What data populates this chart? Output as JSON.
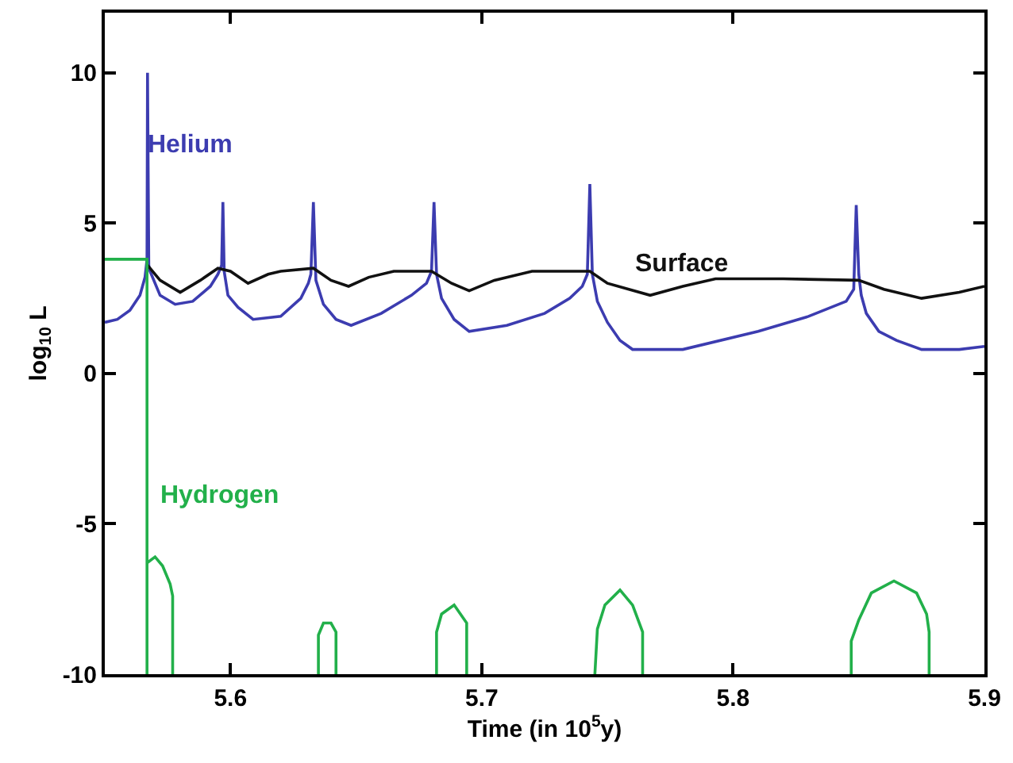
{
  "chart_data": {
    "type": "line",
    "xlabel": "Time (in 10$^{5}$y)",
    "ylabel": "log$_{10}$ L",
    "xlim": [
      5.55,
      5.9
    ],
    "ylim": [
      -10,
      12
    ],
    "xticks": [
      5.6,
      5.7,
      5.8,
      5.9
    ],
    "yticks": [
      -10,
      -5,
      0,
      5,
      10
    ],
    "grid": false,
    "legend": false,
    "marker": "none",
    "line_style": "solid",
    "series": [
      {
        "name": "Helium",
        "color": "#3c3cb0",
        "x": [
          5.55,
          5.555,
          5.56,
          5.564,
          5.566,
          5.5668,
          5.567,
          5.5675,
          5.568,
          5.572,
          5.578,
          5.585,
          5.592,
          5.595,
          5.5965,
          5.597,
          5.5975,
          5.599,
          5.603,
          5.609,
          5.62,
          5.628,
          5.631,
          5.632,
          5.633,
          5.634,
          5.637,
          5.642,
          5.648,
          5.66,
          5.672,
          5.678,
          5.68,
          5.681,
          5.682,
          5.684,
          5.689,
          5.695,
          5.71,
          5.725,
          5.735,
          5.74,
          5.742,
          5.743,
          5.744,
          5.746,
          5.75,
          5.755,
          5.76,
          5.78,
          5.81,
          5.83,
          5.845,
          5.848,
          5.849,
          5.85,
          5.851,
          5.853,
          5.858,
          5.865,
          5.875,
          5.89,
          5.9
        ],
        "values": [
          1.7,
          1.8,
          2.1,
          2.6,
          3.2,
          3.8,
          10,
          3.6,
          3.4,
          2.6,
          2.3,
          2.4,
          2.9,
          3.3,
          3.6,
          5.7,
          3.4,
          2.6,
          2.2,
          1.8,
          1.9,
          2.5,
          3.0,
          3.3,
          5.7,
          3.1,
          2.3,
          1.8,
          1.6,
          2.0,
          2.6,
          3.0,
          3.4,
          5.7,
          3.3,
          2.5,
          1.8,
          1.4,
          1.6,
          2.0,
          2.5,
          2.9,
          3.3,
          6.3,
          3.3,
          2.4,
          1.7,
          1.1,
          0.8,
          0.8,
          1.4,
          1.9,
          2.4,
          2.8,
          5.6,
          3.3,
          2.6,
          2.0,
          1.4,
          1.1,
          0.8,
          0.8,
          0.9
        ]
      },
      {
        "name": "Surface",
        "color": "#111111",
        "x": [
          5.567,
          5.572,
          5.58,
          5.588,
          5.595,
          5.6,
          5.607,
          5.615,
          5.62,
          5.633,
          5.64,
          5.647,
          5.655,
          5.665,
          5.68,
          5.688,
          5.695,
          5.705,
          5.72,
          5.743,
          5.75,
          5.767,
          5.78,
          5.793,
          5.82,
          5.85,
          5.86,
          5.875,
          5.89,
          5.9
        ],
        "values": [
          3.6,
          3.1,
          2.7,
          3.1,
          3.5,
          3.4,
          3.0,
          3.3,
          3.4,
          3.5,
          3.1,
          2.9,
          3.2,
          3.4,
          3.4,
          3.0,
          2.75,
          3.1,
          3.4,
          3.4,
          3.0,
          2.6,
          2.9,
          3.15,
          3.15,
          3.1,
          2.8,
          2.5,
          2.7,
          2.9
        ]
      },
      {
        "name": "Hydrogen",
        "color": "#22b04a",
        "x": [
          5.55,
          5.5668,
          5.5668,
          null,
          5.5668,
          5.57,
          5.573,
          5.576,
          5.577,
          5.577,
          null,
          5.635,
          5.635,
          5.637,
          5.64,
          5.642,
          5.642,
          null,
          5.682,
          5.682,
          5.684,
          5.689,
          5.694,
          5.694,
          null,
          5.745,
          5.746,
          5.749,
          5.755,
          5.76,
          5.764,
          5.764,
          null,
          5.847,
          5.847,
          5.85,
          5.855,
          5.864,
          5.873,
          5.877,
          5.878,
          5.878
        ],
        "values": [
          3.8,
          3.8,
          -10,
          null,
          -6.3,
          -6.1,
          -6.4,
          -7.0,
          -7.4,
          -10,
          null,
          -10,
          -8.7,
          -8.3,
          -8.3,
          -8.6,
          -10,
          null,
          -10,
          -8.6,
          -8.0,
          -7.7,
          -8.3,
          -10,
          null,
          -10,
          -8.5,
          -7.7,
          -7.2,
          -7.7,
          -8.6,
          -10,
          null,
          -10,
          -8.9,
          -8.2,
          -7.3,
          -6.9,
          -7.3,
          -8.0,
          -8.6,
          -10
        ]
      }
    ]
  }
}
